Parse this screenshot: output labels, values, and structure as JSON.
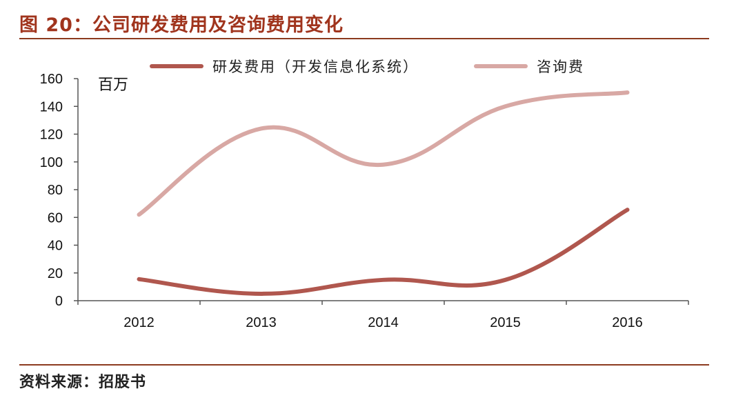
{
  "header": {
    "title": "图 20：公司研发费用及咨询费用变化"
  },
  "footer": {
    "source": "资料来源：招股书"
  },
  "chart_data": {
    "type": "line",
    "unit": "百万",
    "categories": [
      "2012",
      "2013",
      "2014",
      "2015",
      "2016"
    ],
    "ylim": [
      0,
      160
    ],
    "yticks": [
      0,
      20,
      40,
      60,
      80,
      100,
      120,
      140,
      160
    ],
    "legend_position": "top",
    "grid": false,
    "smooth": true,
    "series": [
      {
        "name": "研发费用（开发信息化系统）",
        "color": "#b0574e",
        "values": [
          15.5,
          5,
          15,
          15,
          65.5
        ]
      },
      {
        "name": "咨询费",
        "color": "#d8a8a4",
        "values": [
          62,
          124,
          98,
          140,
          150
        ]
      }
    ]
  }
}
